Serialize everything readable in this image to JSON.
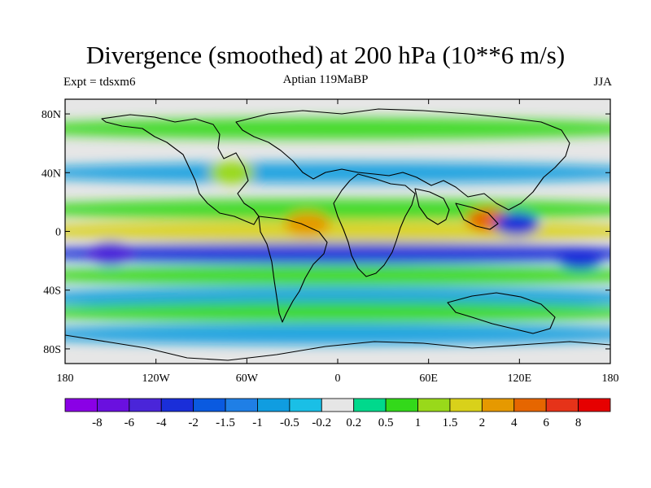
{
  "chart_data": {
    "type": "heatmap",
    "title": "Divergence (smoothed) at 200 hPa (10**6 m/s)",
    "subtitle": "Aptian   119MaBP",
    "experiment": "Expt = tdsxm6",
    "season": "JJA",
    "x_axis": {
      "ticks": [
        "180",
        "120W",
        "60W",
        "0",
        "60E",
        "120E",
        "180"
      ],
      "range": [
        -180,
        180
      ]
    },
    "y_axis": {
      "ticks": [
        "80N",
        "40N",
        "0",
        "40S",
        "80S"
      ],
      "range": [
        -90,
        90
      ]
    },
    "colorbar": {
      "labels": [
        "-8",
        "-6",
        "-4",
        "-2",
        "-1.5",
        "-1",
        "-0.5",
        "-0.2",
        "0.2",
        "0.5",
        "1",
        "1.5",
        "2",
        "4",
        "6",
        "8"
      ],
      "colors": [
        "#8a00e6",
        "#6a10df",
        "#4a25d9",
        "#1a2ed9",
        "#0a5ae0",
        "#1f7fe6",
        "#109de0",
        "#1abfe6",
        "#e6e6e6",
        "#00d98c",
        "#33d91a",
        "#99d91a",
        "#d9d11a",
        "#e69900",
        "#e66600",
        "#e63319",
        "#e60000"
      ]
    },
    "bands": [
      {
        "lat": 70,
        "value": 0.6
      },
      {
        "lat": 40,
        "value": -0.7
      },
      {
        "lat": 15,
        "value": 0.9
      },
      {
        "lat": 0,
        "value": 1.8
      },
      {
        "lat": -15,
        "value": -2.2
      },
      {
        "lat": -30,
        "value": 0.6
      },
      {
        "lat": -45,
        "value": -0.8
      },
      {
        "lat": -55,
        "value": 0.7
      },
      {
        "lat": -70,
        "value": -0.6
      }
    ],
    "features": [
      {
        "lon": 100,
        "lat": 8,
        "value": 5
      },
      {
        "lon": 118,
        "lat": 5,
        "value": -3
      },
      {
        "lon": -70,
        "lat": 40,
        "value": 1.2
      },
      {
        "lon": 160,
        "lat": -18,
        "value": -3.5
      },
      {
        "lon": -150,
        "lat": -15,
        "value": -4.5
      },
      {
        "lon": -20,
        "lat": 5,
        "value": 2.5
      }
    ]
  }
}
